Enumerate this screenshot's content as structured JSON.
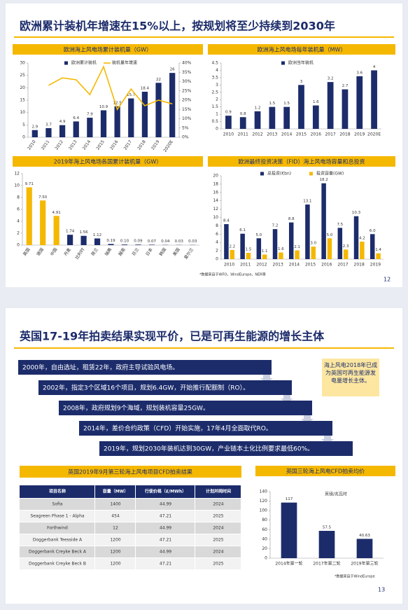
{
  "slides": [
    {
      "title": "欧洲累计装机年增速在15%以上，按规划将至少持续到2030年",
      "charts": [
        {
          "type": "bar",
          "title": "欧洲海上风电场累计装机量（GW）",
          "rotate_labels": true,
          "categories": [
            "2010",
            "2011",
            "2012",
            "2013",
            "2014",
            "2015",
            "2016",
            "2017",
            "2018",
            "2019",
            "2020E"
          ],
          "series": [
            {
              "name": "欧洲累计装机",
              "type": "bar",
              "color": "#1c2c6b",
              "values": [
                2.9,
                3.7,
                4.9,
                6.4,
                7.9,
                10.9,
                12.5,
                15.7,
                18.4,
                22,
                26
              ]
            },
            {
              "name": "装机量年增速",
              "type": "line",
              "axis": "y2",
              "color": "#f5b800",
              "values": [
                null,
                28,
                32,
                31,
                23,
                38,
                15,
                26,
                17,
                20,
                18
              ]
            }
          ],
          "ylim": [
            0,
            30
          ],
          "yticks": [
            0,
            5,
            10,
            15,
            20,
            25,
            30
          ],
          "y2lim": [
            0,
            40
          ],
          "y2ticks": [
            {
              "value": 0,
              "label": "0%"
            },
            {
              "value": 5,
              "label": "5%"
            },
            {
              "value": 10,
              "label": "10%"
            },
            {
              "value": 15,
              "label": "15%"
            },
            {
              "value": 20,
              "label": "20%"
            },
            {
              "value": 25,
              "label": "25%"
            },
            {
              "value": 30,
              "label": "30%"
            },
            {
              "value": 35,
              "label": "35%"
            },
            {
              "value": 40,
              "label": "40%"
            }
          ],
          "legend": "top"
        },
        {
          "type": "bar",
          "title": "欧洲海上风电场每年装机量（MW）",
          "rotate_labels": false,
          "categories": [
            "2010",
            "2011",
            "2012",
            "2013",
            "2014",
            "2015",
            "2016",
            "2017",
            "2018",
            "2019",
            "2020E"
          ],
          "series": [
            {
              "name": "欧洲当年装机",
              "type": "bar",
              "color": "#1c2c6b",
              "values": [
                0.9,
                0.8,
                1.2,
                1.5,
                1.5,
                3,
                1.6,
                3.2,
                2.7,
                3.6,
                4
              ]
            }
          ],
          "ylim": [
            0,
            4.5
          ],
          "yticks": [
            0,
            0.5,
            1,
            1.5,
            2,
            2.5,
            3,
            3.5,
            4,
            4.5
          ],
          "legend": "top"
        },
        {
          "type": "bar",
          "title": "2019年海上风电场各国累计装机量（GW）",
          "rotate_labels": true,
          "categories": [
            "英国",
            "德国",
            "中国",
            "丹麦",
            "比利时",
            "荷兰",
            "瑞典",
            "越南",
            "芬兰",
            "日本",
            "韩国",
            "美国",
            "爱尔兰"
          ],
          "values": [
            9.71,
            7.5,
            4.91,
            1.74,
            1.56,
            1.12,
            0.19,
            0.1,
            0.09,
            0.07,
            0.04,
            0.03,
            0.03
          ],
          "value_labels": [
            "9.71",
            "7.50",
            "4.91",
            "1.74",
            "1.56",
            "1.12",
            "0.19",
            "0.10",
            "0.09",
            "0.07",
            "0.04",
            "0.03",
            "0.03"
          ],
          "colors": [
            "#f5b800",
            "#f5b800",
            "#f5b800",
            "#1c2c6b",
            "#1c2c6b",
            "#1c2c6b",
            "#1c2c6b",
            "#1c2c6b",
            "#1c2c6b",
            "#1c2c6b",
            "#1c2c6b",
            "#1c2c6b",
            "#1c2c6b"
          ],
          "ylim": [
            0,
            12
          ],
          "yticks": [
            0,
            2,
            4,
            6,
            8,
            10,
            12
          ]
        },
        {
          "type": "bar",
          "title": "欧洲最终投资决策（FID）海上风电场容量和总投资",
          "rotate_labels": false,
          "categories": [
            "2010",
            "2011",
            "2012",
            "2013",
            "2014",
            "2015",
            "2016",
            "2017",
            "2018",
            "2019"
          ],
          "series": [
            {
              "name": "总投资(€bn)",
              "type": "bar",
              "color": "#1c2c6b",
              "values": [
                8.4,
                6.1,
                5,
                7.2,
                8.8,
                13.1,
                18.2,
                7.5,
                10.3,
                6
              ],
              "value_labels": [
                "8.4",
                "6.1",
                "5.0",
                "7.2",
                "8.8",
                "13.1",
                "18.2",
                "7.5",
                "10.3",
                "6.0"
              ]
            },
            {
              "name": "投资容量(GW)",
              "type": "bar",
              "color": "#f5b800",
              "values": [
                2.2,
                1.5,
                1.1,
                1.6,
                2.1,
                3,
                5,
                2.3,
                4.2,
                1.4
              ],
              "value_labels": [
                "2.2",
                "1.5",
                "1.1",
                "1.6",
                "2.1",
                "3.0",
                "5.0",
                "2.3",
                "4.2",
                "1.4"
              ]
            }
          ],
          "ylim": [
            0,
            20
          ],
          "yticks": [
            0,
            2,
            4,
            6,
            8,
            10,
            12,
            14,
            16,
            18,
            20
          ],
          "legend": "top"
        }
      ],
      "source": "*数据来自于WFO，WindEurope，NER等",
      "page": "12"
    },
    {
      "title": "英国17-19年拍卖结果实现平价，已是可再生能源的增长主体",
      "timeline": [
        "2000年，自由选址，租赁22年，政府主导试验风电场。",
        "2002年，指定3个区域16个项目，规划6.4GW，开始推行配额制（RO）。",
        "2008年，政府规划9个海域，规划装机容量25GW。",
        "2014年，差价合约政策（CFD）开始实施，17年4月全面取代RO。",
        "2019年，规划2030年装机达到30GW，产业链本土化比例要求最低60%。"
      ],
      "note": "海上风电2018年已成为英国可再生能源发电量增长主体。",
      "table": {
        "title": "英国2019年9月第三轮海上风电项目CFD拍卖结果",
        "columns": [
          "项目名称",
          "容量（MW）",
          "行使价格（£/MWh）",
          "计划并网时间"
        ],
        "rows": [
          [
            "Sofia",
            "1400",
            "44.99",
            "2024"
          ],
          [
            "Seagreen Phase 1 - Alpha",
            "454",
            "47.21",
            "2025"
          ],
          [
            "Forthwind",
            "12",
            "44.99",
            "2024"
          ],
          [
            "Doggerbank Teesside A",
            "1200",
            "47.21",
            "2025"
          ],
          [
            "Doggerbank Creyke Beck A",
            "1200",
            "44.99",
            "2024"
          ],
          [
            "Doggerbank Creyke Beck B",
            "1200",
            "47.21",
            "2025"
          ]
        ]
      },
      "chart": {
        "type": "bar",
        "title": "英国三轮海上风电CFD拍卖均价",
        "unit": "英镑/兆瓦时",
        "rotate_labels": false,
        "categories": [
          "2014年第一轮",
          "2017年第二轮",
          "2019年第三轮"
        ],
        "values": [
          117,
          57.5,
          40.63
        ],
        "color": "#1c2c6b",
        "ylim": [
          0,
          140
        ],
        "yticks": [
          0,
          20,
          40,
          60,
          80,
          100,
          120,
          140
        ]
      },
      "source": "*数据来自于WindEurope",
      "page": "13"
    }
  ]
}
